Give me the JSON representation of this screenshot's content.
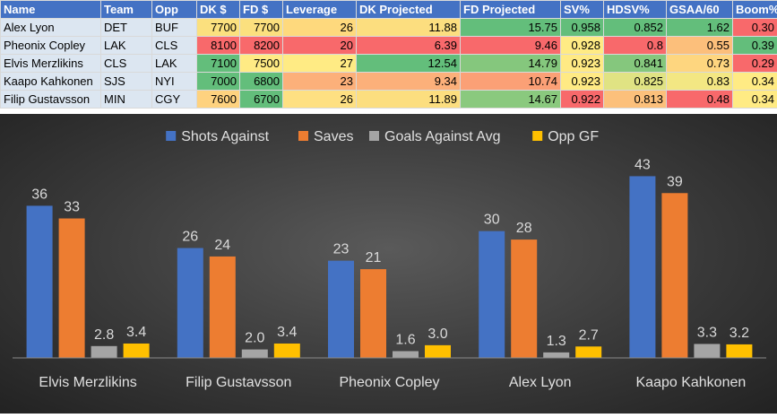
{
  "table": {
    "headers": [
      "Name",
      "Team",
      "Opp",
      "DK $",
      "FD $",
      "Leverage",
      "DK Projected",
      "FD Projected",
      "SV%",
      "HDSV%",
      "GSAA/60",
      "Boom%"
    ],
    "rows": [
      {
        "cells": [
          "Alex Lyon",
          "DET",
          "BUF",
          "7700",
          "7700",
          "26",
          "11.88",
          "15.75",
          "0.958",
          "0.852",
          "1.62",
          "0.30"
        ],
        "colors": [
          null,
          null,
          null,
          "#fbe07e",
          "#fbe07e",
          "#fed97d",
          "#fcde7f",
          "#63be7b",
          "#63be7b",
          "#63be7b",
          "#63be7b",
          "#f8696b"
        ]
      },
      {
        "cells": [
          "Pheonix Copley",
          "LAK",
          "CLS",
          "8100",
          "8200",
          "20",
          "6.39",
          "9.46",
          "0.928",
          "0.8",
          "0.55",
          "0.39"
        ],
        "colors": [
          null,
          null,
          null,
          "#f8696b",
          "#f8696b",
          "#f8696b",
          "#f8696b",
          "#f8696b",
          "#ffeb84",
          "#f8696b",
          "#fcbf7b",
          "#63be7b"
        ]
      },
      {
        "cells": [
          "Elvis Merzlikins",
          "CLS",
          "LAK",
          "7100",
          "7500",
          "27",
          "12.54",
          "14.79",
          "0.923",
          "0.841",
          "0.73",
          "0.29"
        ],
        "colors": [
          null,
          null,
          null,
          "#63be7b",
          "#ffeb84",
          "#ffeb84",
          "#63be7b",
          "#85c77d",
          "#ffea84",
          "#85c77d",
          "#fed67f",
          "#f8696b"
        ]
      },
      {
        "cells": [
          "Kaapo Kahkonen",
          "SJS",
          "NYI",
          "7000",
          "6800",
          "23",
          "9.34",
          "10.74",
          "0.923",
          "0.825",
          "0.83",
          "0.34"
        ],
        "colors": [
          null,
          null,
          null,
          "#63be7b",
          "#63be7b",
          "#fcb07a",
          "#fcb07a",
          "#fba076",
          "#ffea84",
          "#e0e383",
          "#f3e783",
          "#ffeb84"
        ]
      },
      {
        "cells": [
          "Filip Gustavsson",
          "MIN",
          "CGY",
          "7600",
          "6700",
          "26",
          "11.89",
          "14.67",
          "0.922",
          "0.813",
          "0.48",
          "0.34"
        ],
        "colors": [
          null,
          null,
          null,
          "#fed27f",
          "#63be7b",
          "#fee082",
          "#fcde7f",
          "#8ac97e",
          "#f8696b",
          "#fcc07b",
          "#f8696b",
          "#ffeb84"
        ]
      }
    ]
  },
  "chart_data": {
    "type": "bar",
    "categories": [
      "Elvis Merzlikins",
      "Filip Gustavsson",
      "Pheonix Copley",
      "Alex Lyon",
      "Kaapo Kahkonen"
    ],
    "series": [
      {
        "name": "Shots Against",
        "values": [
          36,
          26,
          23,
          30,
          43
        ],
        "labels": [
          "36",
          "26",
          "23",
          "30",
          "43"
        ],
        "color": "#4472c4"
      },
      {
        "name": "Saves",
        "values": [
          33,
          24,
          21,
          28,
          39
        ],
        "labels": [
          "33",
          "24",
          "21",
          "28",
          "39"
        ],
        "color": "#ed7d31"
      },
      {
        "name": "Goals Against Avg",
        "values": [
          2.8,
          2.0,
          1.6,
          1.3,
          3.3
        ],
        "labels": [
          "2.8",
          "2.0",
          "1.6",
          "1.3",
          "3.3"
        ],
        "color": "#a5a5a5"
      },
      {
        "name": "Opp GF",
        "values": [
          3.4,
          3.4,
          3.0,
          2.7,
          3.2
        ],
        "labels": [
          "3.4",
          "3.4",
          "3.0",
          "2.7",
          "3.2"
        ],
        "color": "#ffc000"
      }
    ],
    "ylim": [
      0,
      45
    ],
    "legend": "top",
    "grid": false,
    "title": "",
    "xlabel": "",
    "ylabel": ""
  }
}
